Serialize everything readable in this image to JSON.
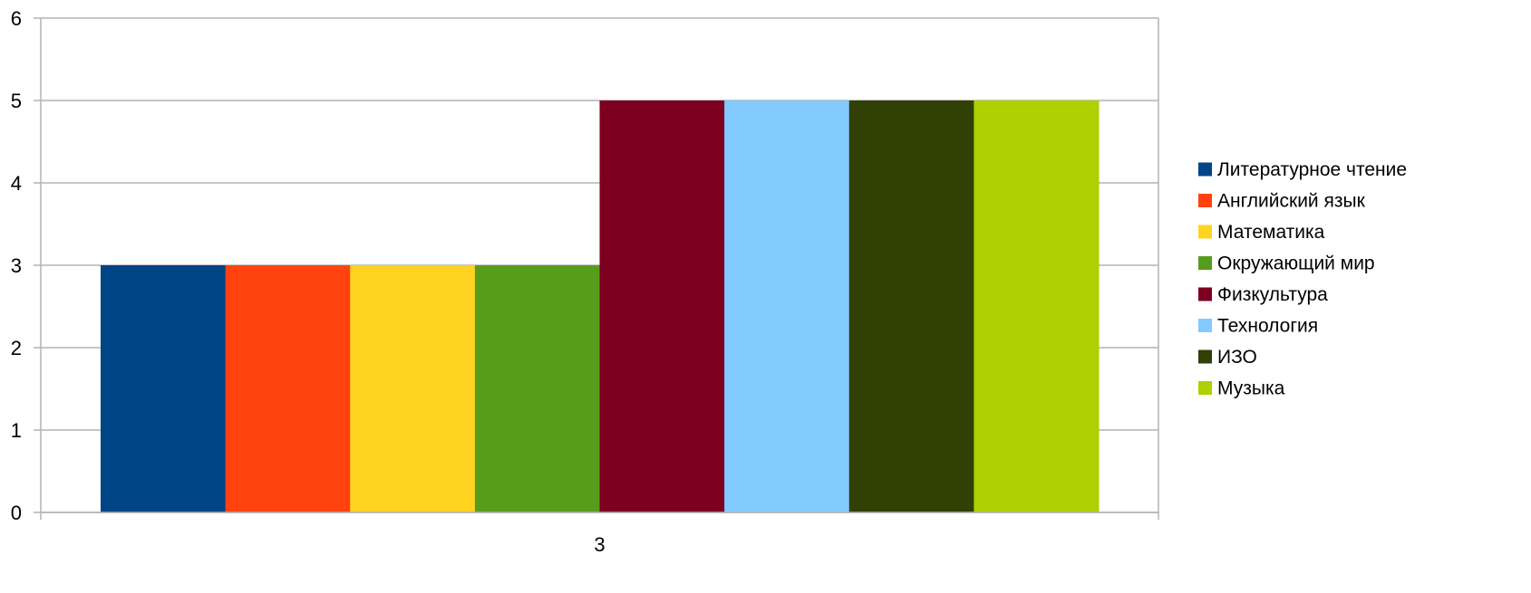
{
  "chart_data": {
    "type": "bar",
    "categories": [
      "3"
    ],
    "series": [
      {
        "name": "Литературное чтение",
        "values": [
          3
        ],
        "color": "#004586"
      },
      {
        "name": "Английский  язык",
        "values": [
          3
        ],
        "color": "#ff420e"
      },
      {
        "name": "Математика",
        "values": [
          3
        ],
        "color": "#ffd320"
      },
      {
        "name": "Окружающий мир",
        "values": [
          3
        ],
        "color": "#579d1c"
      },
      {
        "name": "Физкультура",
        "values": [
          5
        ],
        "color": "#7e0021"
      },
      {
        "name": "Технология",
        "values": [
          5
        ],
        "color": "#83caff"
      },
      {
        "name": "ИЗО",
        "values": [
          5
        ],
        "color": "#314004"
      },
      {
        "name": "Музыка",
        "values": [
          5
        ],
        "color": "#aecf00"
      }
    ],
    "y_ticks": [
      "0",
      "1",
      "2",
      "3",
      "4",
      "5",
      "6"
    ],
    "ylim": [
      0,
      6
    ],
    "grid": true,
    "legend_position": "right",
    "title": "",
    "xlabel": "",
    "ylabel": ""
  }
}
